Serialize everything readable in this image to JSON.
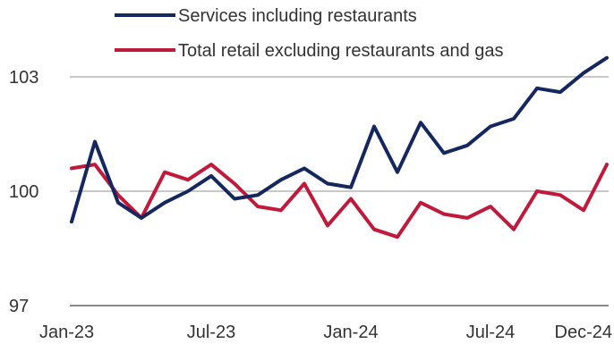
{
  "chart_data": {
    "type": "line",
    "title": "",
    "xlabel": "",
    "ylabel": "",
    "ylim": [
      97,
      104
    ],
    "yticks": [
      97,
      100,
      103
    ],
    "x_tick_labels": [
      "Jan-23",
      "Jul-23",
      "Jan-24",
      "Jul-24",
      "Dec-24"
    ],
    "x": [
      "2023-01",
      "2023-02",
      "2023-03",
      "2023-04",
      "2023-05",
      "2023-06",
      "2023-07",
      "2023-08",
      "2023-09",
      "2023-10",
      "2023-11",
      "2023-12",
      "2024-01",
      "2024-02",
      "2024-03",
      "2024-04",
      "2024-05",
      "2024-06",
      "2024-07",
      "2024-08",
      "2024-09",
      "2024-10",
      "2024-11",
      "2024-12"
    ],
    "grid": "horizontal",
    "legend_placement": "top",
    "series": [
      {
        "name": "Services including restaurants",
        "color": "#14275e",
        "values": [
          99.2,
          101.3,
          99.7,
          99.3,
          99.7,
          100.0,
          100.4,
          99.8,
          99.9,
          100.3,
          100.6,
          100.2,
          100.1,
          101.7,
          100.5,
          101.8,
          101.0,
          101.2,
          101.7,
          101.9,
          102.7,
          102.6,
          103.1,
          103.5
        ]
      },
      {
        "name": "Total retail excluding restaurants and gas",
        "color": "#c1193b",
        "values": [
          100.6,
          100.7,
          99.9,
          99.3,
          100.5,
          100.3,
          100.7,
          100.2,
          99.6,
          99.5,
          100.2,
          99.1,
          99.8,
          99.0,
          98.8,
          99.7,
          99.4,
          99.3,
          99.6,
          99.0,
          100.0,
          99.9,
          99.5,
          100.7
        ]
      }
    ]
  }
}
